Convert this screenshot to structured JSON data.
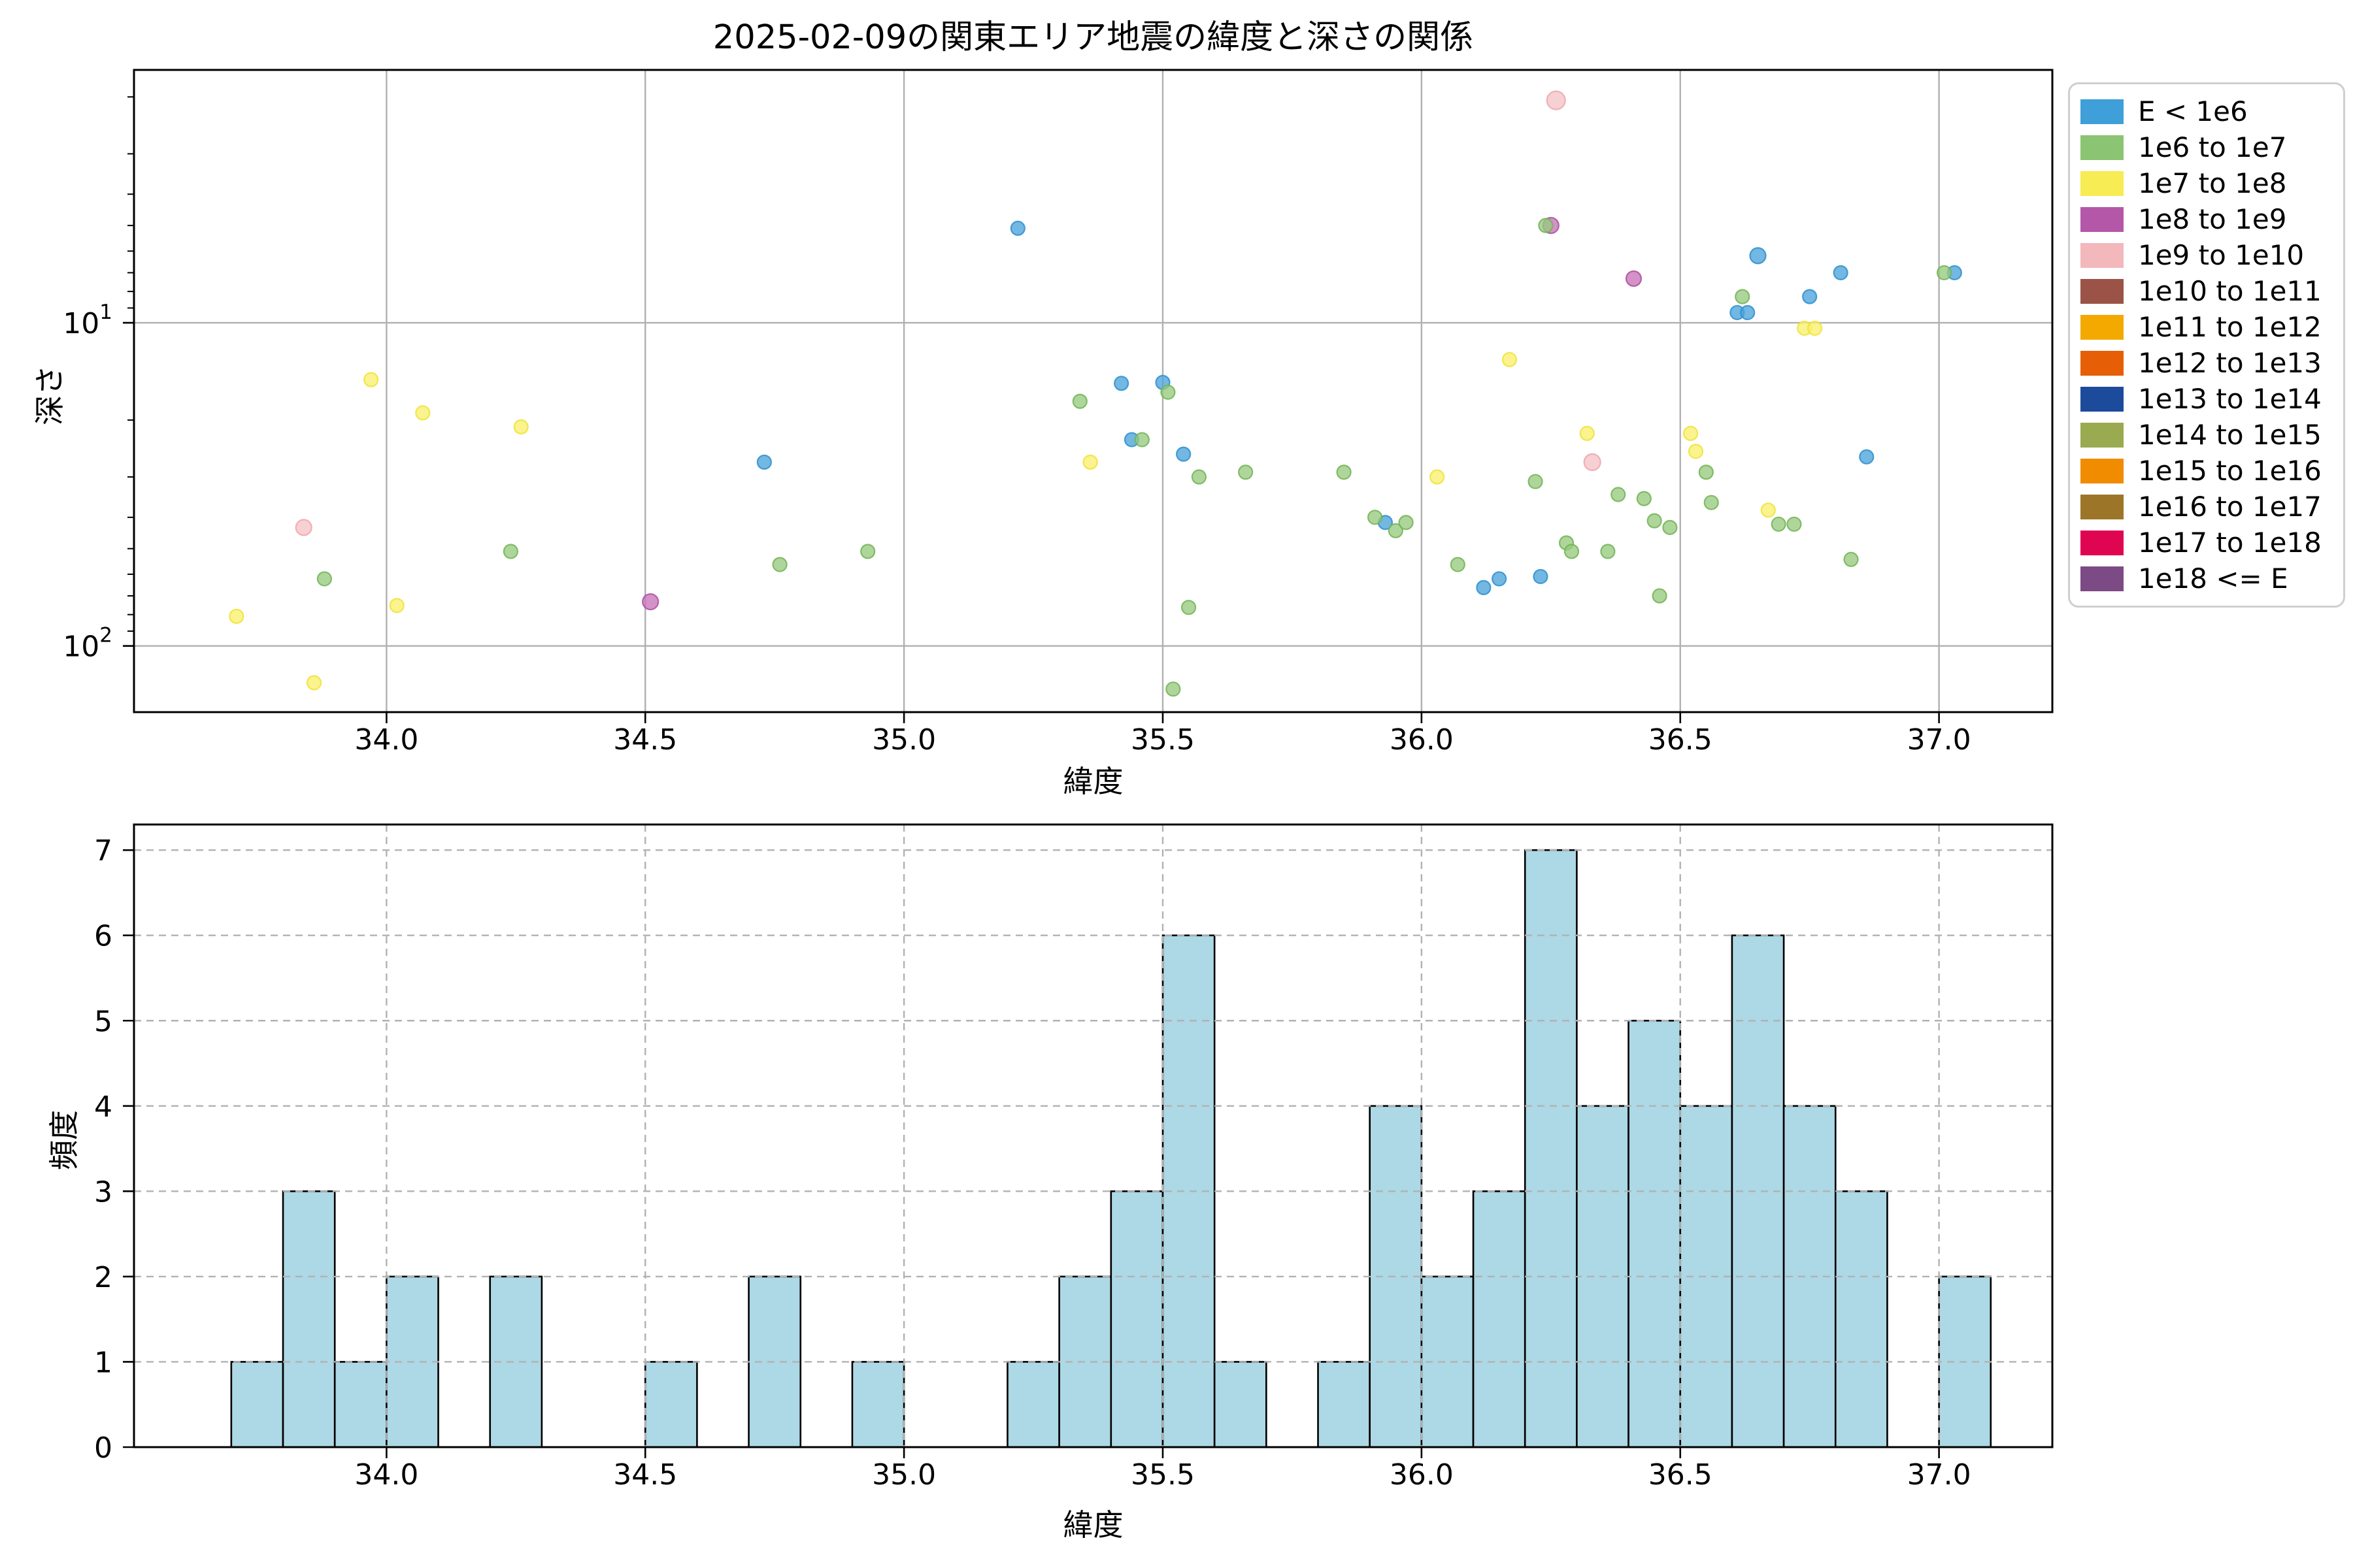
{
  "figure": {
    "title": "2025-02-09の関東エリア地震の緯度と深さの関係",
    "background": "#ffffff"
  },
  "legend": {
    "location": "outside-upper-right",
    "entries": [
      {
        "label": "E < 1e6",
        "color": "#3f9fd8"
      },
      {
        "label": "1e6 to 1e7",
        "color": "#8bc472"
      },
      {
        "label": "1e7 to 1e8",
        "color": "#f7ec53"
      },
      {
        "label": "1e8 to 1e9",
        "color": "#b457a8"
      },
      {
        "label": "1e9 to 1e10",
        "color": "#f2b8bc"
      },
      {
        "label": "1e10 to 1e11",
        "color": "#9b5348"
      },
      {
        "label": "1e11 to 1e12",
        "color": "#f3a900"
      },
      {
        "label": "1e12 to 1e13",
        "color": "#e65f07"
      },
      {
        "label": "1e13 to 1e14",
        "color": "#1c4b9b"
      },
      {
        "label": "1e14 to 1e15",
        "color": "#9aaa50"
      },
      {
        "label": "1e15 to 1e16",
        "color": "#f18c00"
      },
      {
        "label": "1e16 to 1e17",
        "color": "#9d7529"
      },
      {
        "label": "1e17 to 1e18",
        "color": "#e00551"
      },
      {
        "label": "1e18 <= E",
        "color": "#7c4a84"
      }
    ]
  },
  "chart_data": [
    {
      "type": "scatter",
      "title": "2025-02-09の関東エリア地震の緯度と深さの関係",
      "xlabel": "緯度",
      "ylabel": "深さ",
      "xlim": [
        33.512,
        37.219
      ],
      "xticks": [
        34.0,
        34.5,
        35.0,
        35.5,
        36.0,
        36.5,
        37.0
      ],
      "yscale": "log",
      "y_inverted": true,
      "ylim": [
        1.65,
        160.3
      ],
      "ytick_exponents": [
        1,
        2
      ],
      "grid": true,
      "grid_color": "#b0b0b0",
      "series": [
        {
          "name": "E < 1e6",
          "fill": "#4ba3db",
          "stroke": "#2e8fcc",
          "points": [
            [
              34.73,
              27
            ],
            [
              35.22,
              5.1
            ],
            [
              35.42,
              15.4
            ],
            [
              35.44,
              23
            ],
            [
              35.5,
              15.3
            ],
            [
              35.54,
              25.5
            ],
            [
              35.93,
              41.5
            ],
            [
              36.12,
              66
            ],
            [
              36.15,
              62
            ],
            [
              36.23,
              61
            ],
            [
              36.61,
              9.3
            ],
            [
              36.63,
              9.3
            ],
            [
              36.65,
              6.2,
              12
            ],
            [
              36.75,
              8.3
            ],
            [
              36.81,
              7.0
            ],
            [
              36.86,
              26
            ],
            [
              37.03,
              7.0
            ]
          ]
        },
        {
          "name": "1e6 to 1e7",
          "fill": "#97cb7f",
          "stroke": "#72b356",
          "points": [
            [
              33.88,
              62
            ],
            [
              34.24,
              51
            ],
            [
              34.76,
              56
            ],
            [
              34.93,
              51
            ],
            [
              35.34,
              17.5
            ],
            [
              35.46,
              23
            ],
            [
              35.51,
              16.4
            ],
            [
              35.52,
              136
            ],
            [
              35.55,
              76
            ],
            [
              35.57,
              30
            ],
            [
              35.66,
              29
            ],
            [
              35.85,
              29
            ],
            [
              35.91,
              40
            ],
            [
              35.95,
              44
            ],
            [
              35.97,
              41.5
            ],
            [
              36.07,
              56
            ],
            [
              36.22,
              31
            ],
            [
              36.24,
              5.0
            ],
            [
              36.28,
              48
            ],
            [
              36.29,
              51
            ],
            [
              36.36,
              51
            ],
            [
              36.38,
              34
            ],
            [
              36.43,
              35
            ],
            [
              36.45,
              41
            ],
            [
              36.46,
              70
            ],
            [
              36.48,
              43
            ],
            [
              36.55,
              29
            ],
            [
              36.56,
              36
            ],
            [
              36.62,
              8.3
            ],
            [
              36.69,
              42
            ],
            [
              36.72,
              42
            ],
            [
              36.83,
              54
            ],
            [
              37.01,
              7.0
            ]
          ]
        },
        {
          "name": "1e7 to 1e8",
          "fill": "#f9f06e",
          "stroke": "#efe336",
          "points": [
            [
              33.71,
              81
            ],
            [
              33.86,
              130
            ],
            [
              33.97,
              15
            ],
            [
              34.02,
              75
            ],
            [
              34.07,
              19
            ],
            [
              34.26,
              21
            ],
            [
              35.36,
              27
            ],
            [
              36.03,
              30
            ],
            [
              36.17,
              13
            ],
            [
              36.32,
              22
            ],
            [
              36.52,
              22
            ],
            [
              36.53,
              25
            ],
            [
              36.67,
              38
            ],
            [
              36.74,
              10.4
            ],
            [
              36.76,
              10.4
            ]
          ]
        },
        {
          "name": "1e8 to 1e9",
          "fill": "#c873b8",
          "stroke": "#ab4f9f",
          "points": [
            [
              34.51,
              73,
              12
            ],
            [
              36.25,
              5.0,
              12
            ],
            [
              36.41,
              7.3,
              11.5
            ]
          ]
        },
        {
          "name": "1e9 to 1e10",
          "fill": "#f5c3c7",
          "stroke": "#eda6ad",
          "points": [
            [
              33.84,
              43,
              12
            ],
            [
              36.26,
              2.05,
              14
            ],
            [
              36.33,
              27,
              12.5
            ]
          ]
        }
      ]
    },
    {
      "type": "histogram",
      "xlabel": "緯度",
      "ylabel": "頻度",
      "xlim": [
        33.512,
        37.219
      ],
      "xticks": [
        34.0,
        34.5,
        35.0,
        35.5,
        36.0,
        36.5,
        37.0
      ],
      "ylim": [
        0,
        7.3
      ],
      "yticks": [
        0,
        1,
        2,
        3,
        4,
        5,
        6,
        7
      ],
      "bin_start": 33.7,
      "bin_width": 0.1,
      "counts": [
        1,
        3,
        1,
        2,
        0,
        2,
        0,
        0,
        1,
        0,
        2,
        0,
        1,
        0,
        0,
        1,
        2,
        3,
        6,
        1,
        0,
        1,
        4,
        2,
        3,
        7,
        4,
        5,
        4,
        6,
        4,
        3,
        0,
        2
      ],
      "total": 71,
      "bar_color": "#add8e6",
      "bar_edge": "#000000",
      "grid": "dashed",
      "grid_color": "#b2b2b2"
    }
  ]
}
